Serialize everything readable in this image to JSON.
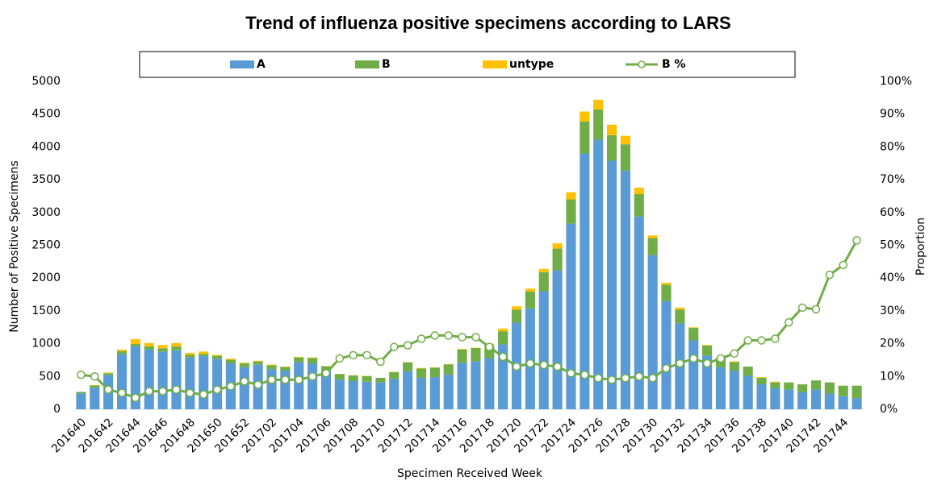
{
  "chart_data": {
    "type": "stacked-bar-line",
    "title": "Trend of influenza positive specimens according to LARS",
    "x_label": "Specimen Received Week",
    "y_label": "Number of Positive Specimens",
    "y2_label": "Proportion",
    "legend": "top",
    "categories": [
      "201640",
      null,
      "201642",
      null,
      "201644",
      null,
      "201646",
      null,
      "201648",
      null,
      "201650",
      null,
      "201652",
      null,
      "201702",
      null,
      "201704",
      null,
      "201706",
      null,
      "201708",
      null,
      "201710",
      null,
      "201712",
      null,
      "201714",
      null,
      "201716",
      null,
      "201718",
      null,
      "201720",
      null,
      "201722",
      null,
      "201724",
      null,
      "201726",
      null,
      "201728",
      null,
      "201730",
      null,
      "201732",
      null,
      "201734",
      null,
      "201736",
      null,
      "201738",
      null,
      "201740",
      null,
      "201742",
      null,
      "201744",
      null
    ],
    "series": [
      {
        "name": "A",
        "color": "#5b9bd5",
        "values": [
          240,
          330,
          520,
          840,
          960,
          910,
          880,
          900,
          790,
          810,
          770,
          700,
          640,
          680,
          610,
          590,
          720,
          700,
          580,
          450,
          430,
          420,
          410,
          460,
          580,
          480,
          490,
          530,
          710,
          730,
          780,
          990,
          1320,
          1540,
          1800,
          2120,
          2830,
          3900,
          4110,
          3790,
          3640,
          2940,
          2350,
          1650,
          1310,
          1050,
          820,
          640,
          590,
          510,
          380,
          320,
          300,
          260,
          300,
          240,
          200,
          170
        ]
      },
      {
        "name": "B",
        "color": "#70ad47",
        "values": [
          25,
          35,
          30,
          45,
          35,
          50,
          50,
          60,
          40,
          35,
          45,
          55,
          60,
          50,
          60,
          55,
          70,
          80,
          75,
          85,
          85,
          85,
          70,
          105,
          135,
          140,
          145,
          155,
          200,
          205,
          195,
          200,
          200,
          255,
          290,
          330,
          370,
          490,
          460,
          390,
          400,
          340,
          260,
          250,
          210,
          190,
          150,
          140,
          130,
          140,
          100,
          90,
          110,
          120,
          140,
          170,
          160,
          190
        ]
      },
      {
        "name": "untype",
        "color": "#ffc000",
        "values": [
          0,
          5,
          10,
          25,
          75,
          50,
          50,
          50,
          30,
          35,
          15,
          15,
          10,
          10,
          10,
          5,
          10,
          10,
          5,
          5,
          5,
          5,
          0,
          5,
          5,
          10,
          5,
          5,
          10,
          5,
          25,
          40,
          50,
          45,
          50,
          80,
          110,
          150,
          150,
          160,
          130,
          100,
          40,
          30,
          30,
          10,
          10,
          10,
          10,
          0,
          10,
          10,
          0,
          0,
          0,
          0,
          0,
          0
        ]
      },
      {
        "name": "B %",
        "color": "#70ad47",
        "axis": "y2",
        "values": [
          10.5,
          10,
          6,
          5,
          3.5,
          5.5,
          5.5,
          6,
          5,
          4.5,
          6,
          7,
          8.5,
          7.5,
          9,
          9,
          9,
          10,
          11,
          15.5,
          16.5,
          16.5,
          14.5,
          19,
          19.5,
          21.5,
          22.5,
          22.5,
          22,
          22,
          19,
          16,
          13,
          14,
          13.5,
          13,
          11,
          10.5,
          9.5,
          9,
          9.5,
          10,
          9.5,
          12.5,
          14,
          15.5,
          14,
          15.5,
          17,
          21,
          21,
          21.5,
          26.5,
          31,
          30.5,
          41,
          44,
          51.5
        ]
      }
    ],
    "ylim": [
      0,
      5000
    ],
    "yticks": [
      0,
      500,
      1000,
      1500,
      2000,
      2500,
      3000,
      3500,
      4000,
      4500,
      5000
    ],
    "y2lim": [
      0,
      100
    ],
    "y2ticks": [
      {
        "value": 0,
        "label": "0%"
      },
      {
        "value": 10,
        "label": "10%"
      },
      {
        "value": 20,
        "label": "20%"
      },
      {
        "value": 30,
        "label": "30%"
      },
      {
        "value": 40,
        "label": "40%"
      },
      {
        "value": 50,
        "label": "50%"
      },
      {
        "value": 60,
        "label": "60%"
      },
      {
        "value": 70,
        "label": "70%"
      },
      {
        "value": 80,
        "label": "80%"
      },
      {
        "value": 90,
        "label": "90%"
      },
      {
        "value": 100,
        "label": "100%"
      }
    ]
  }
}
